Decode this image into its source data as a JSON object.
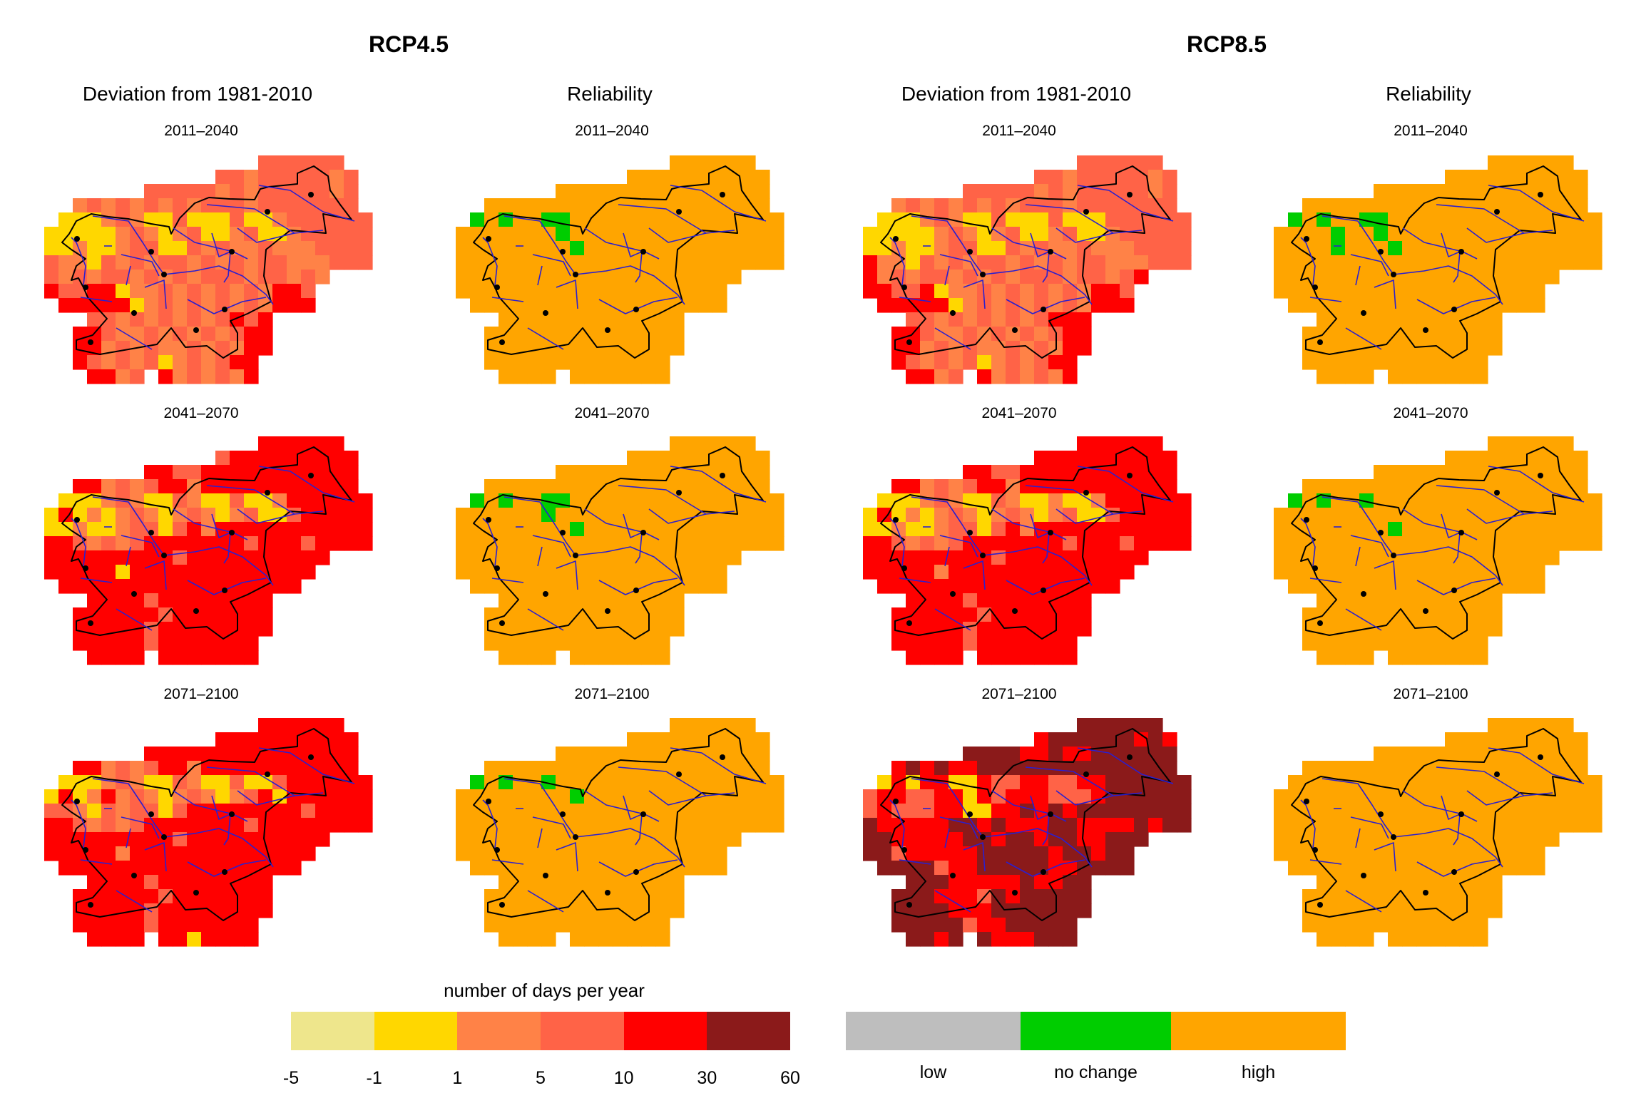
{
  "scenarios": [
    {
      "title": "RCP4.5",
      "deviation_header": "Deviation from 1981-2010",
      "reliability_header": "Reliability"
    },
    {
      "title": "RCP8.5",
      "deviation_header": "Deviation from 1981-2010",
      "reliability_header": "Reliability"
    }
  ],
  "periods": [
    "2011–2040",
    "2041–2070",
    "2071–2100"
  ],
  "colors": {
    "a": "#EEE68C",
    "b": "#FFD700",
    "c": "#FF8247",
    "d": "#FF6347",
    "e": "#FF0000",
    "f": "#8B1A1A",
    "g": "#BEBEBE",
    "n": "#00CD00",
    "h": "#FFA500",
    "border": "#000000",
    "river": "#2020C8"
  },
  "deviation": [
    [
      [
        "...............dddddd..",
        "............ddcdddddcd.",
        ".......dddddcdcdddddcd.",
        "..cdcdcdcdcdddcddddddd.",
        ".bbbcdcbbdbbbdbbcdddddd",
        "bbbbbcdcbcdbbcdbbcddddd",
        "bbcbbcddbbdcdccdcccdddd",
        "dccbdcdcddcdcdcddcccddd",
        "dcdcddcdcdcdddcddcdc...",
        "eddeebccdcdcdcdceed....",
        ".eeeeebcdcdcdcdceee....",
        "...ddcdcdcdcdede.......",
        "..eedccdcdcdcdee.......",
        "..eecdcdccdcdcee.......",
        "..edcdcdbcdcdee........",
        "...eecd.ecdcdce........"
      ],
      [
        "...............eeeeee..",
        "............deeeeeeeee.",
        ".......eeddeeeeeeeeeee.",
        "..eecdcdeeceeeeeeeeeee.",
        ".bbbcdcbbdcbbdbbceeeeee",
        "bebcbcdcbcdcbcdbbdeeeee",
        "bbcbbcddbdeceeeeeeeeeee",
        "eedcdcdeeeeeeedeeedeeee",
        "eeeeeeeeedeeeeeeeeee...",
        "eeeeebeeeeeeeeeeeee....",
        ".eeeeeeeeeeeeeeeee.....",
        "...eeeedeeeeeeee.......",
        "..eeeeeedeeeeeee.......",
        "..eeeeedeeeeeeee.......",
        "..eeeeedeeeeeee........",
        "...eeee.eeeeeee........"
      ],
      [
        "...............eeeeee..",
        "............eeeeeeeeee.",
        ".......eeeeeeeeeeeeeee.",
        "..eecdcdeeceeeeeeeeeee.",
        ".bbbcdcbbdcbbdbbdeeeeee",
        "bebcecdcbcdcbcdebeeeeee",
        "ddcbdcddbdeeeeeeeedeeee",
        "eedcdcdeeeeeeedeeeeeeee",
        "eeeeeeeeedeeeeeeeeee...",
        "eeeeeceeeeeeeeeeeee....",
        ".eeeeeeeeeeeeeeeee.....",
        "...eeeedeeeeeeee.......",
        "..eeeeeedeeeeeee.......",
        "..eeeeedeeeeeeee.......",
        "..eeeeedeeeeeee........",
        "...eeee.eebeeee........"
      ]
    ],
    [
      [
        "...............dddddd..",
        "............ddcdddddcd.",
        ".......dddddcdcdddddcd.",
        "..cdcdcdcdcdddcddddddd.",
        ".bbbcdcbbdbbbdbbbdddddd",
        "bbbbbcdcbcdbbcdbbcddddd",
        "bbcbbcddbbdcdccdcccdddd",
        "eccbdcdcddcdcdcddcccddd",
        "ecdcddcdcdcdddcddcde...",
        "eeddebccdcdcdcdceed....",
        ".eeeeebcdcdcdcdceee....",
        "...ddcdcdcdcdeee.......",
        "..eedccdcdcdcdee.......",
        "..eecdcdccdcdcee.......",
        "..edcdcdbcdcdee........",
        "...eecd.ecdcdce........"
      ],
      [
        "...............eeeeee..",
        "............eeeeeeeeee.",
        ".......eeddeeeeeeeeeee.",
        "..eecdcdeeceeeeeeeeeee.",
        ".bbbcdcbbdcbbcbbceeeeee",
        "bebcbcdcbcdcbcdbbdeeeee",
        "bbcbbcddbdeceeeeeeeeeee",
        "eedcdcdeeeeeeedeeedeeee",
        "eeeeeeeeedeeeeeeeeee...",
        "eeeeeceeeeeeeeeeeee....",
        ".eeeeeeeeeeeeeeeee.....",
        "...eeeedeeeeeeee.......",
        "..eeeeeedeeeeeee.......",
        "..eeeeedeeeeeeee.......",
        "..eeeeedeeeeeee........",
        "...eeee.eeeeeee........"
      ],
      [
        "...............ffffff..",
        "............effffffefe.",
        ".......ffffeefeeffffff.",
        "..efefeeffffffffffffff.",
        ".bebeebbeddeeddeeffffff",
        "deeddeebedeeedddeffffff",
        "dedddeebbeefefeffffffff",
        "feeeeeffefeeeffeeeefeff",
        "ffeeeeeffeffeffeefff...",
        "ffdeeeeefffffeffeff....",
        ".ffffdeefffffeeffff....",
        "...fffeeeeefeeff.......",
        "..fffeeedfefffff.......",
        "..ffffeeefffffff.......",
        "..fffffdeefffff........",
        "...ffef.feeefff........"
      ]
    ]
  ],
  "reliability": [
    [
      {
        "base": "h",
        "green_cells": [
          [
            4,
            1
          ],
          [
            4,
            3
          ],
          [
            4,
            6
          ],
          [
            4,
            7
          ],
          [
            5,
            7
          ],
          [
            6,
            8
          ]
        ]
      },
      {
        "base": "h",
        "green_cells": [
          [
            4,
            1
          ],
          [
            4,
            3
          ],
          [
            4,
            6
          ],
          [
            4,
            7
          ],
          [
            5,
            6
          ],
          [
            6,
            8
          ]
        ]
      },
      {
        "base": "h",
        "green_cells": [
          [
            4,
            1
          ],
          [
            4,
            3
          ],
          [
            4,
            6
          ],
          [
            5,
            8
          ]
        ]
      }
    ],
    [
      {
        "base": "h",
        "green_cells": [
          [
            4,
            1
          ],
          [
            4,
            3
          ],
          [
            4,
            6
          ],
          [
            4,
            7
          ],
          [
            5,
            4
          ],
          [
            5,
            7
          ],
          [
            6,
            4
          ],
          [
            6,
            8
          ]
        ]
      },
      {
        "base": "h",
        "green_cells": [
          [
            4,
            1
          ],
          [
            4,
            3
          ],
          [
            4,
            6
          ],
          [
            6,
            8
          ]
        ]
      },
      {
        "base": "h",
        "green_cells": []
      }
    ]
  ],
  "legend_deviation": {
    "title": "number of days per year",
    "classes": [
      "a",
      "b",
      "c",
      "d",
      "e",
      "f"
    ],
    "ticks": [
      "-5",
      "-1",
      "1",
      "5",
      "10",
      "30",
      "60"
    ]
  },
  "legend_reliability": {
    "classes": [
      {
        "key": "g",
        "label": "low"
      },
      {
        "key": "n",
        "label": "no change"
      },
      {
        "key": "h",
        "label": "high"
      }
    ]
  }
}
